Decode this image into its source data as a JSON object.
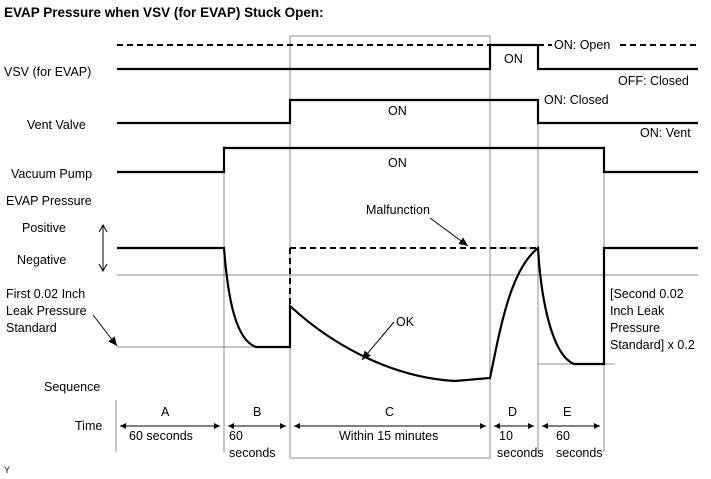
{
  "title": "EVAP Pressure when VSV (for EVAP) Stuck Open:",
  "rows": {
    "vsv": "VSV (for EVAP)",
    "vent_valve": "Vent Valve",
    "vacuum_pump": "Vacuum Pump",
    "evap_pressure": "EVAP Pressure",
    "positive": "Positive",
    "negative": "Negative",
    "first_standard": [
      "First 0.02 Inch",
      "Leak Pressure",
      "Standard"
    ],
    "sequence": "Sequence",
    "time": "Time"
  },
  "state_labels": {
    "vsv_open": "ON: Open",
    "vsv_closed": "OFF: Closed",
    "vsv_on": "ON",
    "vent_on_closed": "ON: Closed",
    "vent_on_vent": "ON: Vent",
    "vent_on": "ON",
    "pump_on": "ON"
  },
  "annotations": {
    "malfunction": "Malfunction",
    "ok": "OK",
    "second_standard": [
      "[Second 0.02",
      "Inch Leak",
      "Pressure",
      "Standard] x 0.2"
    ]
  },
  "sequence_steps": [
    {
      "id": "A",
      "time": [
        "60 seconds"
      ]
    },
    {
      "id": "B",
      "time": [
        "60",
        "seconds"
      ]
    },
    {
      "id": "C",
      "time": [
        "Within 15 minutes"
      ]
    },
    {
      "id": "D",
      "time": [
        "10",
        "seconds"
      ]
    },
    {
      "id": "E",
      "time": [
        "60",
        "seconds"
      ]
    }
  ],
  "footer": "Y"
}
